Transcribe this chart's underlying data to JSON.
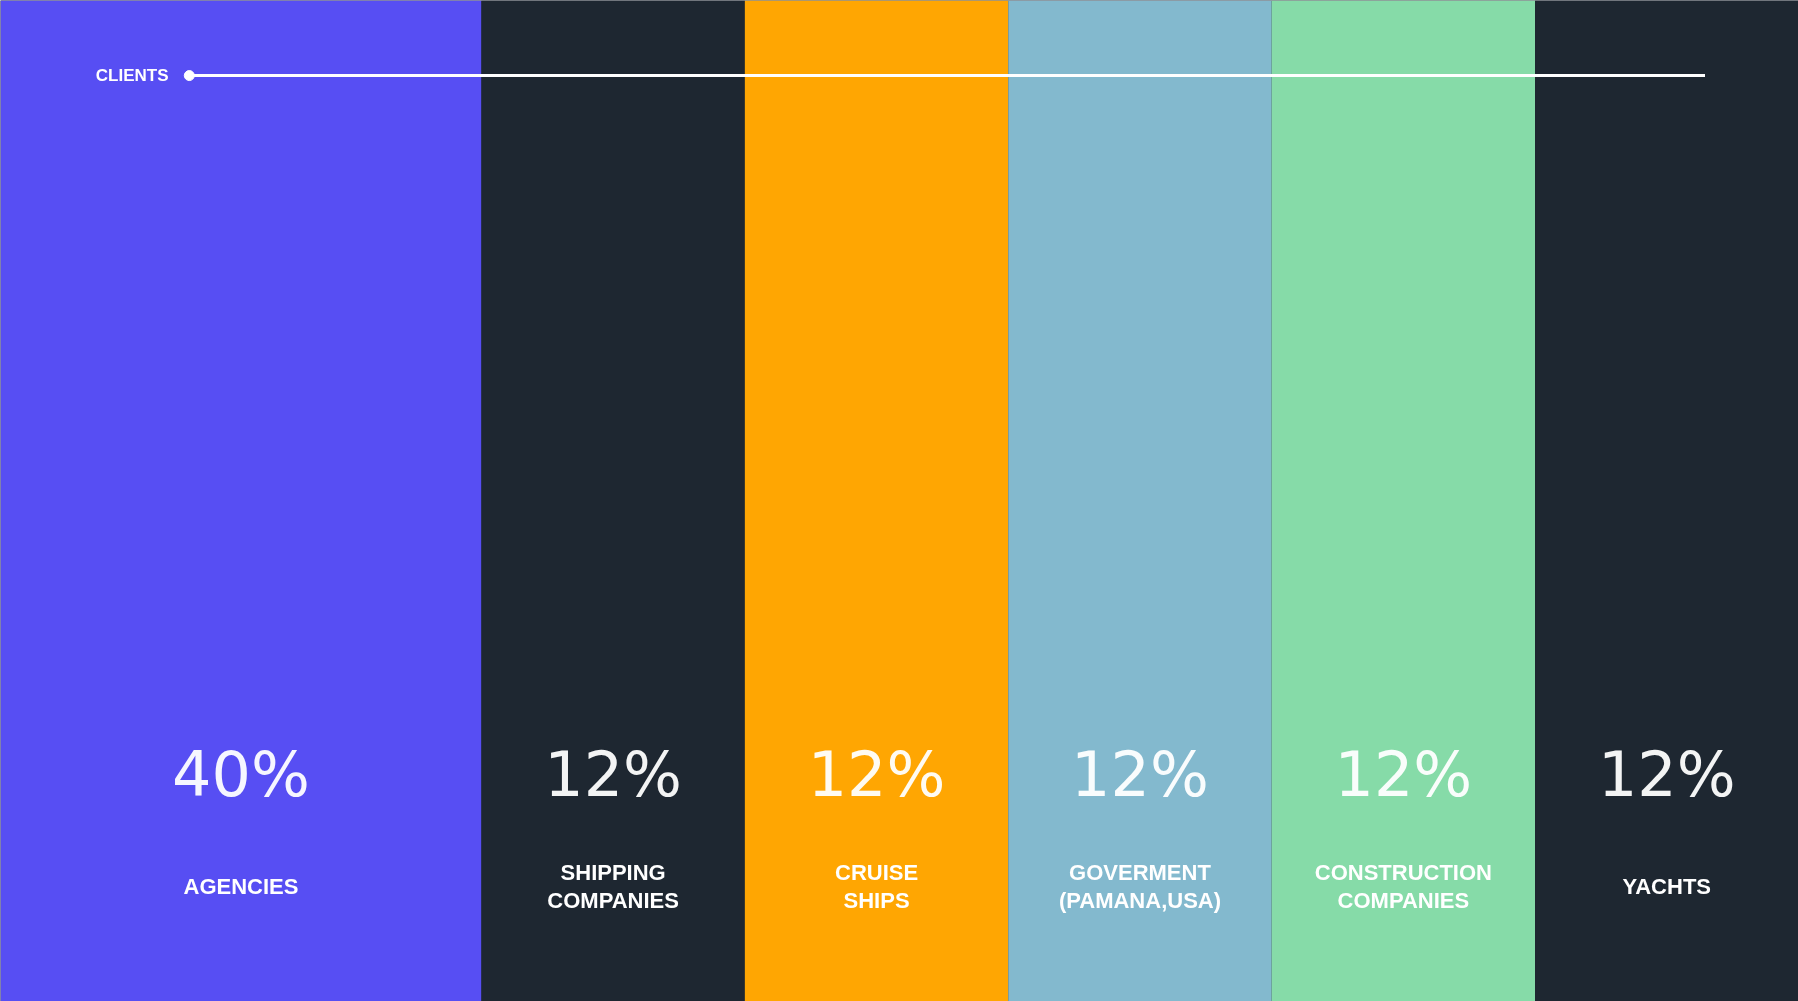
{
  "chart_data": {
    "type": "other",
    "title": "CLIENTS",
    "categories": [
      "AGENCIES",
      "SHIPPING COMPANIES",
      "CRUISE SHIPS",
      "GOVERMENT (PAMANA,USA)",
      "CONSTRUCTION COMPANIES",
      "YACHTS"
    ],
    "values": [
      40,
      12,
      12,
      12,
      12,
      12
    ],
    "value_labels": [
      "40%",
      "12%",
      "12%",
      "12%",
      "12%",
      "12%"
    ],
    "colors": [
      "#574ef3",
      "#1e2731",
      "#ffa602",
      "#83b9ce",
      "#86dba8",
      "#1e2731"
    ]
  }
}
